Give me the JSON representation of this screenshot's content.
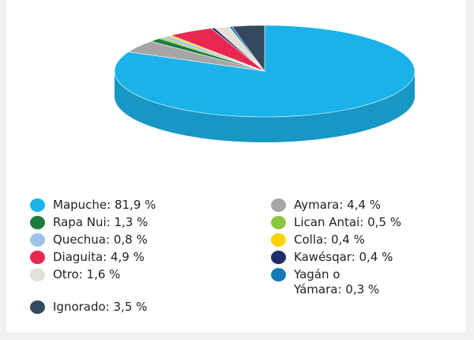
{
  "chart_data": {
    "type": "pie3d",
    "categories": [
      "Mapuche",
      "Aymara",
      "Rapa Nui",
      "Lican Antai",
      "Quechua",
      "Colla",
      "Diaguita",
      "Kawésqar",
      "Otro",
      "Yagán o Yámara",
      "Ignorado"
    ],
    "values": [
      81.9,
      4.4,
      1.3,
      0.5,
      0.8,
      0.4,
      4.9,
      0.4,
      1.6,
      0.3,
      3.5
    ],
    "value_labels": [
      "Mapuche: 81,9 %",
      "Aymara: 4,4 %",
      "Rapa Nui: 1,3 %",
      "Lican Antai: 0,5 %",
      "Quechua: 0,8 %",
      "Colla: 0,4 %",
      "Diaguita: 4,9 %",
      "Kawésqar: 0,4 %",
      "Otro: 1,6 %",
      "Yagán o\nYámara: 0,3 %",
      "Ignorado: 3,5 %"
    ],
    "colors": [
      "#1ab2e8",
      "#a6a6a6",
      "#1e7b3c",
      "#8cc63f",
      "#9dc3e6",
      "#ffd200",
      "#e8284f",
      "#1f2d6b",
      "#e3e0d8",
      "#1479b8",
      "#34495e"
    ],
    "legend": "bottom"
  }
}
